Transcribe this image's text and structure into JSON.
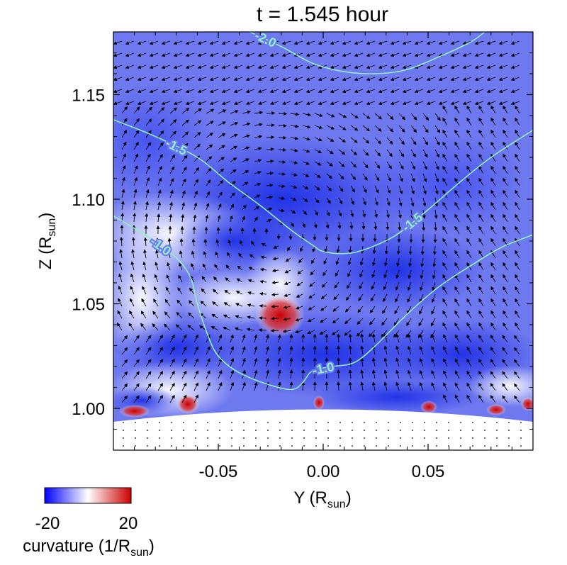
{
  "chart_data": {
    "type": "heatmap",
    "title": "t = 1.545 hour",
    "xlabel": {
      "main": "Y (R",
      "sub": "sun",
      "close": ")"
    },
    "ylabel": {
      "main": "Z (R",
      "sub": "sun",
      "close": ")"
    },
    "xlim": [
      -0.1,
      0.1
    ],
    "ylim": [
      0.98,
      1.18
    ],
    "x_ticks": [
      {
        "value": -0.05,
        "label": "-0.05"
      },
      {
        "value": 0.0,
        "label": "0.00"
      },
      {
        "value": 0.05,
        "label": "0.05"
      }
    ],
    "y_ticks": [
      {
        "value": 1.0,
        "label": "1.00"
      },
      {
        "value": 1.05,
        "label": "1.05"
      },
      {
        "value": 1.1,
        "label": "1.10"
      },
      {
        "value": 1.15,
        "label": "1.15"
      }
    ],
    "colorbar": {
      "min": -20,
      "max": 20,
      "min_label": "-20",
      "max_label": "20",
      "label": {
        "main": "curvature (1/R",
        "sub": "sun",
        "close": ")"
      },
      "colors": [
        "#0000ff",
        "#ffffff",
        "#cc0000"
      ]
    },
    "contours": [
      {
        "level": -2.0,
        "label": "-2.0",
        "points": [
          [
            -0.035,
            1.18
          ],
          [
            -0.02,
            1.173
          ],
          [
            -0.005,
            1.165
          ],
          [
            0.01,
            1.161
          ],
          [
            0.025,
            1.16
          ],
          [
            0.04,
            1.162
          ],
          [
            0.055,
            1.168
          ],
          [
            0.07,
            1.175
          ],
          [
            0.077,
            1.18
          ]
        ]
      },
      {
        "level": -1.5,
        "label": "-1.5",
        "points": [
          [
            -0.1,
            1.138
          ],
          [
            -0.08,
            1.13
          ],
          [
            -0.06,
            1.12
          ],
          [
            -0.045,
            1.108
          ],
          [
            -0.03,
            1.097
          ],
          [
            -0.015,
            1.085
          ],
          [
            -0.005,
            1.078
          ],
          [
            0.0,
            1.075
          ],
          [
            0.01,
            1.074
          ],
          [
            0.02,
            1.076
          ],
          [
            0.035,
            1.083
          ],
          [
            0.05,
            1.095
          ],
          [
            0.065,
            1.108
          ],
          [
            0.08,
            1.12
          ],
          [
            0.1,
            1.133
          ]
        ]
      },
      {
        "level": -1.0,
        "label": "-1.0",
        "points": [
          [
            -0.1,
            1.092
          ],
          [
            -0.085,
            1.083
          ],
          [
            -0.07,
            1.072
          ],
          [
            -0.063,
            1.062
          ],
          [
            -0.06,
            1.05
          ],
          [
            -0.055,
            1.035
          ],
          [
            -0.05,
            1.025
          ],
          [
            -0.04,
            1.017
          ],
          [
            -0.025,
            1.011
          ],
          [
            -0.015,
            1.009
          ],
          [
            -0.01,
            1.012
          ],
          [
            -0.005,
            1.018
          ],
          [
            0.005,
            1.02
          ],
          [
            0.015,
            1.022
          ],
          [
            0.025,
            1.03
          ],
          [
            0.04,
            1.045
          ],
          [
            0.055,
            1.058
          ],
          [
            0.07,
            1.068
          ],
          [
            0.085,
            1.077
          ],
          [
            0.1,
            1.083
          ]
        ]
      }
    ],
    "vector_field": {
      "description": "velocity arrows"
    }
  },
  "colors": {
    "background_blue": "#6e78ef",
    "contour": "#8ff0c4",
    "arrow": "#000000"
  }
}
